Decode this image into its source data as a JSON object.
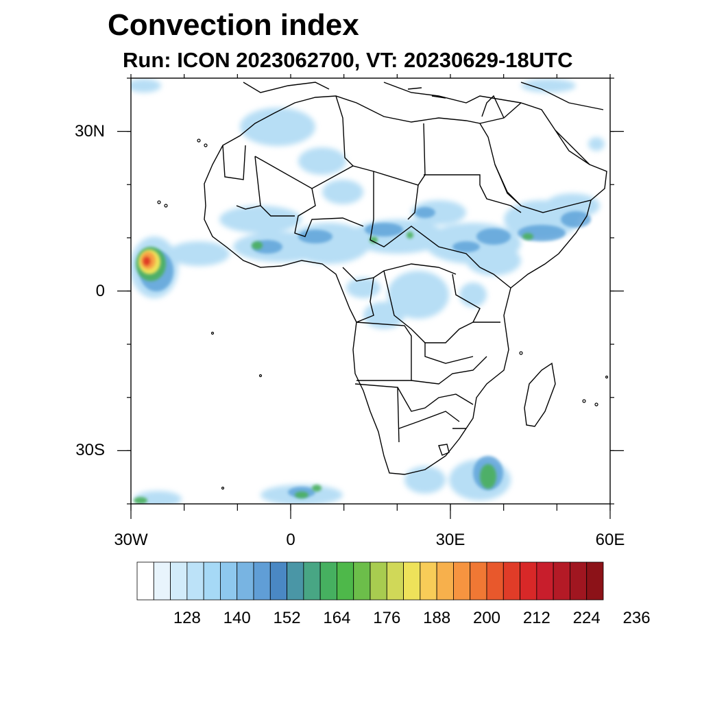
{
  "title": "Convection index",
  "subtitle": "Run: ICON 2023062700,  VT: 20230629-18UTC",
  "map": {
    "lon_range": [
      -30,
      60
    ],
    "lat_range": [
      -40,
      40
    ],
    "lat_ticks": [
      {
        "value": 30,
        "label": "30N"
      },
      {
        "value": 0,
        "label": "0"
      },
      {
        "value": -30,
        "label": "30S"
      }
    ],
    "lon_ticks": [
      {
        "value": -30,
        "label": "30W"
      },
      {
        "value": 0,
        "label": "0"
      },
      {
        "value": 30,
        "label": "30E"
      },
      {
        "value": 60,
        "label": "60E"
      }
    ],
    "land_outline_color": "#000000"
  },
  "colorbar": {
    "colors": [
      "#ffffff",
      "#e8f4fc",
      "#d2ecfa",
      "#bce2f8",
      "#a6d9f6",
      "#8ec8ee",
      "#78b4e2",
      "#609ed6",
      "#4a88c4",
      "#4a96a6",
      "#48a684",
      "#46b060",
      "#4eb84a",
      "#6cbe4a",
      "#a8cc50",
      "#d0d858",
      "#eee25a",
      "#f8cc58",
      "#f7b04c",
      "#f69440",
      "#f07834",
      "#e8582c",
      "#e03c28",
      "#d82828",
      "#c81e2c",
      "#b41a26",
      "#a01620",
      "#8c1218"
    ],
    "labels": [
      "128",
      "140",
      "152",
      "164",
      "176",
      "188",
      "200",
      "212",
      "224",
      "236"
    ]
  }
}
